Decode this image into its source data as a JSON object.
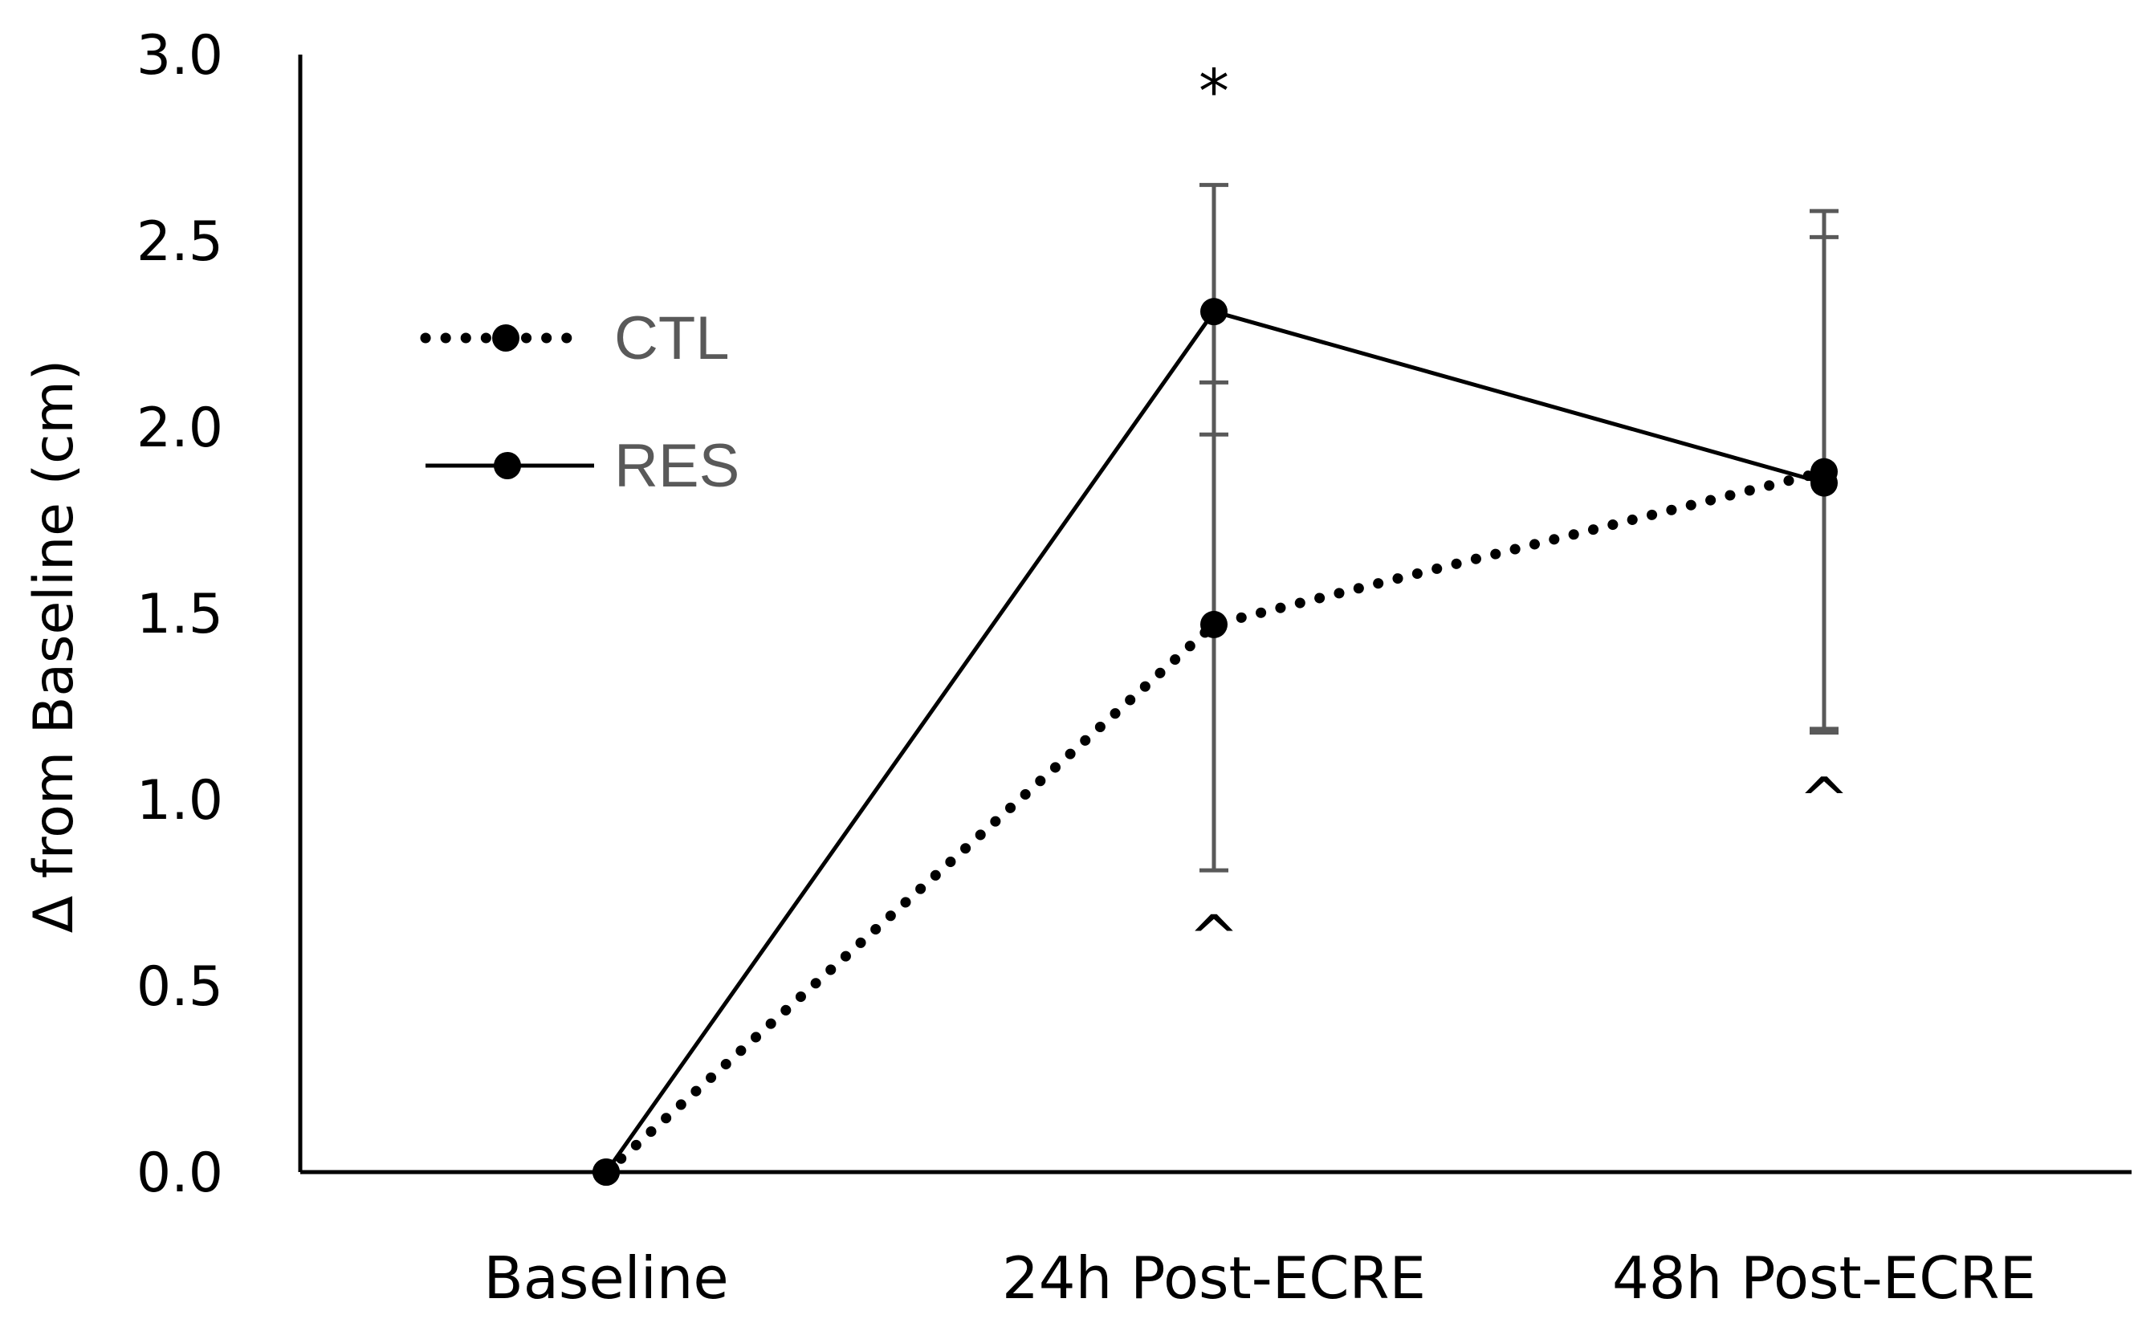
{
  "chart_data": {
    "type": "line",
    "title": "",
    "xlabel": "",
    "ylabel": "Δ from Baseline (cm)",
    "ylim": [
      0,
      3.0
    ],
    "yticks": [
      0.0,
      0.5,
      1.0,
      1.5,
      2.0,
      2.5,
      3.0
    ],
    "ytick_labels": [
      "0.0",
      "0.5",
      "1.0",
      "1.5",
      "2.0",
      "2.5",
      "3.0"
    ],
    "grid": false,
    "legend_position": "upper-left",
    "categories": [
      "Baseline",
      "24h Post-ECRE",
      "48h Post-ECRE"
    ],
    "series": [
      {
        "name": "CTL",
        "style": "dotted",
        "color": "#000000",
        "values": [
          0.0,
          1.47,
          1.88
        ],
        "error_upper": [
          null,
          2.12,
          2.51
        ],
        "error_lower": [
          null,
          0.81,
          1.19
        ]
      },
      {
        "name": "RES",
        "style": "solid",
        "color": "#000000",
        "values": [
          0.0,
          2.31,
          1.85
        ],
        "error_upper": [
          null,
          2.65,
          2.58
        ],
        "error_lower": [
          null,
          1.98,
          1.18
        ]
      }
    ],
    "error_bar_color": "#595959",
    "annotations": [
      {
        "text": "*",
        "category": "24h Post-ECRE",
        "placement": "above"
      },
      {
        "text": "^",
        "category": "24h Post-ECRE",
        "placement": "below"
      },
      {
        "text": "^",
        "category": "48h Post-ECRE",
        "placement": "below"
      }
    ]
  }
}
